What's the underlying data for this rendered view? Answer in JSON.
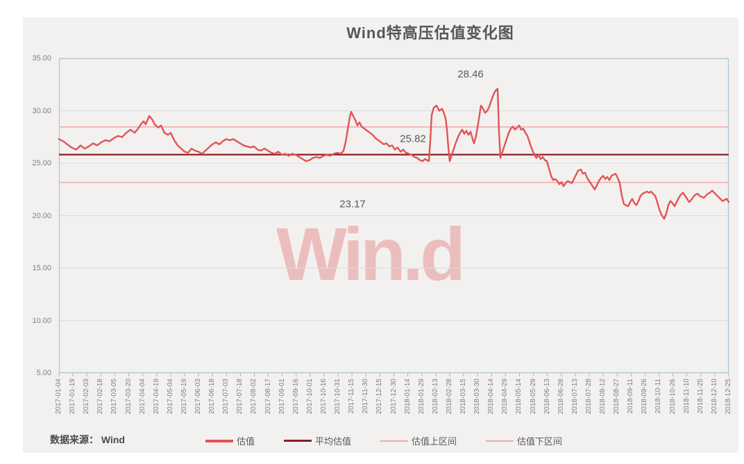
{
  "title": "Wind特高压估值变化图",
  "watermark": "Win.d",
  "source_note": {
    "text": "数据来源： Wind"
  },
  "colors": {
    "page_bg": "#ffffff",
    "panel_bg": "#f2f1f0",
    "grid": "#dcdcdc",
    "axis_border": "#a9c6d6",
    "tick": "#9db8c6",
    "series": "#e25353",
    "average_line": "#8a1f1f",
    "band_line": "#f2a8a8",
    "title_text": "#565656",
    "label_text": "#808080",
    "annotation_text": "#595959",
    "watermark_text": "rgba(223,90,90,0.34)"
  },
  "legend": [
    {
      "label": "估值",
      "color": "#e25353",
      "thickness": 4
    },
    {
      "label": "平均估值",
      "color": "#8a1f1f",
      "thickness": 3
    },
    {
      "label": "估值上区间",
      "color": "#f2a8a8",
      "thickness": 2
    },
    {
      "label": "估值下区间",
      "color": "#f2a8a8",
      "thickness": 2
    }
  ],
  "chart_data": {
    "type": "line",
    "title": "Wind特高压估值变化图",
    "xlabel": "",
    "ylabel": "",
    "ylim": [
      5,
      35
    ],
    "y_tick_step": 5,
    "y_tick_labels": [
      "5.00",
      "10.00",
      "15.00",
      "20.00",
      "25.00",
      "30.00",
      "35.00"
    ],
    "grid": "horizontal",
    "legend_position": "bottom",
    "categories": [
      "2017-01-04",
      "2017-01-19",
      "2017-02-03",
      "2017-02-18",
      "2017-03-05",
      "2017-03-20",
      "2017-04-04",
      "2017-04-19",
      "2017-05-04",
      "2017-05-19",
      "2017-06-03",
      "2017-06-18",
      "2017-07-03",
      "2017-07-18",
      "2017-08-02",
      "2017-08-17",
      "2017-09-01",
      "2017-09-16",
      "2017-10-01",
      "2017-10-16",
      "2017-10-31",
      "2017-11-15",
      "2017-11-30",
      "2017-12-15",
      "2017-12-30",
      "2018-01-14",
      "2018-01-29",
      "2018-02-13",
      "2018-02-28",
      "2018-03-15",
      "2018-03-30",
      "2018-04-14",
      "2018-04-29",
      "2018-05-14",
      "2018-05-29",
      "2018-06-13",
      "2018-06-28",
      "2018-07-13",
      "2018-07-28",
      "2018-08-12",
      "2018-08-27",
      "2018-09-11",
      "2018-09-26",
      "2018-10-11",
      "2018-10-26",
      "2018-11-10",
      "2018-11-25",
      "2018-12-10",
      "2018-12-25"
    ],
    "reference_lines": [
      {
        "name": "估值上区间",
        "value": 28.46,
        "color": "#f2a8a8",
        "width": 1.6
      },
      {
        "name": "平均估值",
        "value": 25.82,
        "color": "#8a1f1f",
        "width": 2.2
      },
      {
        "name": "估值下区间",
        "value": 23.17,
        "color": "#f2a8a8",
        "width": 1.6
      }
    ],
    "annotations": [
      {
        "text": "28.46",
        "x": 593,
        "y": 23
      },
      {
        "text": "25.82",
        "x": 510,
        "y": 116
      },
      {
        "text": "23.17",
        "x": 423,
        "y": 210
      }
    ],
    "series_name": "估值",
    "x_unit": "plot-px (0 = 2017-01-04, 965 = 2018-12-25)",
    "series_points": [
      [
        0,
        27.3
      ],
      [
        6,
        27.1
      ],
      [
        12,
        26.8
      ],
      [
        18,
        26.5
      ],
      [
        25,
        26.3
      ],
      [
        31,
        26.7
      ],
      [
        37,
        26.4
      ],
      [
        43,
        26.6
      ],
      [
        49,
        26.9
      ],
      [
        55,
        26.7
      ],
      [
        61,
        27.0
      ],
      [
        67,
        27.2
      ],
      [
        73,
        27.1
      ],
      [
        79,
        27.4
      ],
      [
        85,
        27.6
      ],
      [
        91,
        27.5
      ],
      [
        97,
        27.9
      ],
      [
        103,
        28.2
      ],
      [
        109,
        27.9
      ],
      [
        115,
        28.4
      ],
      [
        119,
        28.8
      ],
      [
        122,
        29.0
      ],
      [
        125,
        28.7
      ],
      [
        130,
        29.5
      ],
      [
        134,
        29.2
      ],
      [
        138,
        28.7
      ],
      [
        143,
        28.4
      ],
      [
        147,
        28.6
      ],
      [
        152,
        27.9
      ],
      [
        157,
        27.7
      ],
      [
        161,
        27.9
      ],
      [
        166,
        27.2
      ],
      [
        171,
        26.7
      ],
      [
        176,
        26.4
      ],
      [
        181,
        26.1
      ],
      [
        186,
        26.0
      ],
      [
        191,
        26.4
      ],
      [
        196,
        26.2
      ],
      [
        201,
        26.1
      ],
      [
        206,
        25.9
      ],
      [
        211,
        26.2
      ],
      [
        216,
        26.5
      ],
      [
        221,
        26.8
      ],
      [
        226,
        27.0
      ],
      [
        231,
        26.8
      ],
      [
        236,
        27.1
      ],
      [
        241,
        27.3
      ],
      [
        246,
        27.2
      ],
      [
        251,
        27.3
      ],
      [
        256,
        27.1
      ],
      [
        261,
        26.9
      ],
      [
        266,
        26.7
      ],
      [
        271,
        26.6
      ],
      [
        276,
        26.5
      ],
      [
        281,
        26.6
      ],
      [
        286,
        26.3
      ],
      [
        291,
        26.2
      ],
      [
        296,
        26.4
      ],
      [
        301,
        26.2
      ],
      [
        306,
        26.0
      ],
      [
        311,
        25.9
      ],
      [
        316,
        26.1
      ],
      [
        321,
        25.8
      ],
      [
        326,
        25.9
      ],
      [
        331,
        25.7
      ],
      [
        336,
        25.9
      ],
      [
        341,
        25.8
      ],
      [
        346,
        25.6
      ],
      [
        351,
        25.4
      ],
      [
        356,
        25.2
      ],
      [
        361,
        25.3
      ],
      [
        366,
        25.5
      ],
      [
        371,
        25.6
      ],
      [
        376,
        25.5
      ],
      [
        381,
        25.7
      ],
      [
        386,
        25.8
      ],
      [
        391,
        25.7
      ],
      [
        396,
        25.9
      ],
      [
        401,
        26.0
      ],
      [
        406,
        25.9
      ],
      [
        410,
        26.2
      ],
      [
        413,
        27.0
      ],
      [
        416,
        28.2
      ],
      [
        419,
        29.4
      ],
      [
        421,
        29.9
      ],
      [
        424,
        29.5
      ],
      [
        427,
        29.1
      ],
      [
        430,
        28.6
      ],
      [
        433,
        28.9
      ],
      [
        436,
        28.5
      ],
      [
        440,
        28.3
      ],
      [
        444,
        28.1
      ],
      [
        448,
        27.9
      ],
      [
        452,
        27.7
      ],
      [
        456,
        27.4
      ],
      [
        460,
        27.2
      ],
      [
        464,
        27.0
      ],
      [
        468,
        26.8
      ],
      [
        472,
        26.9
      ],
      [
        476,
        26.6
      ],
      [
        480,
        26.7
      ],
      [
        484,
        26.3
      ],
      [
        488,
        26.5
      ],
      [
        492,
        26.1
      ],
      [
        496,
        26.3
      ],
      [
        500,
        26.0
      ],
      [
        504,
        25.9
      ],
      [
        508,
        25.8
      ],
      [
        512,
        25.6
      ],
      [
        516,
        25.5
      ],
      [
        520,
        25.3
      ],
      [
        524,
        25.2
      ],
      [
        527,
        25.4
      ],
      [
        530,
        25.3
      ],
      [
        533,
        25.2
      ],
      [
        535,
        27.2
      ],
      [
        537,
        29.6
      ],
      [
        540,
        30.3
      ],
      [
        544,
        30.5
      ],
      [
        548,
        30.0
      ],
      [
        552,
        30.2
      ],
      [
        555,
        29.7
      ],
      [
        557,
        29.3
      ],
      [
        559,
        28.2
      ],
      [
        561,
        26.5
      ],
      [
        563,
        25.2
      ],
      [
        566,
        25.8
      ],
      [
        569,
        26.4
      ],
      [
        572,
        27.0
      ],
      [
        575,
        27.5
      ],
      [
        578,
        27.9
      ],
      [
        581,
        28.2
      ],
      [
        584,
        27.8
      ],
      [
        587,
        28.1
      ],
      [
        590,
        27.7
      ],
      [
        593,
        28.0
      ],
      [
        596,
        27.3
      ],
      [
        598,
        26.9
      ],
      [
        601,
        27.6
      ],
      [
        604,
        28.8
      ],
      [
        608,
        30.5
      ],
      [
        611,
        30.2
      ],
      [
        614,
        29.8
      ],
      [
        617,
        30.0
      ],
      [
        620,
        30.4
      ],
      [
        623,
        31.0
      ],
      [
        627,
        31.7
      ],
      [
        630,
        32.0
      ],
      [
        632,
        32.1
      ],
      [
        634,
        28.0
      ],
      [
        636,
        25.5
      ],
      [
        639,
        26.1
      ],
      [
        642,
        26.7
      ],
      [
        645,
        27.3
      ],
      [
        648,
        27.9
      ],
      [
        651,
        28.3
      ],
      [
        654,
        28.5
      ],
      [
        657,
        28.2
      ],
      [
        660,
        28.4
      ],
      [
        663,
        28.6
      ],
      [
        666,
        28.2
      ],
      [
        669,
        28.3
      ],
      [
        672,
        27.9
      ],
      [
        675,
        27.6
      ],
      [
        677,
        27.2
      ],
      [
        680,
        26.6
      ],
      [
        683,
        26.1
      ],
      [
        686,
        25.7
      ],
      [
        688,
        25.5
      ],
      [
        691,
        25.8
      ],
      [
        694,
        25.4
      ],
      [
        697,
        25.6
      ],
      [
        700,
        25.3
      ],
      [
        703,
        25.2
      ],
      [
        706,
        24.5
      ],
      [
        709,
        23.8
      ],
      [
        712,
        23.4
      ],
      [
        715,
        23.5
      ],
      [
        718,
        23.3
      ],
      [
        721,
        23.0
      ],
      [
        724,
        23.2
      ],
      [
        727,
        22.8
      ],
      [
        730,
        23.1
      ],
      [
        733,
        23.3
      ],
      [
        736,
        23.2
      ],
      [
        739,
        23.1
      ],
      [
        742,
        23.5
      ],
      [
        745,
        23.9
      ],
      [
        748,
        24.3
      ],
      [
        752,
        24.4
      ],
      [
        755,
        24.0
      ],
      [
        758,
        24.1
      ],
      [
        761,
        23.6
      ],
      [
        764,
        23.3
      ],
      [
        767,
        23.0
      ],
      [
        770,
        22.7
      ],
      [
        772,
        22.5
      ],
      [
        775,
        22.9
      ],
      [
        778,
        23.3
      ],
      [
        781,
        23.6
      ],
      [
        784,
        23.8
      ],
      [
        787,
        23.5
      ],
      [
        790,
        23.7
      ],
      [
        793,
        23.4
      ],
      [
        796,
        23.8
      ],
      [
        799,
        23.9
      ],
      [
        802,
        24.0
      ],
      [
        805,
        23.6
      ],
      [
        808,
        23.1
      ],
      [
        811,
        21.9
      ],
      [
        814,
        21.1
      ],
      [
        817,
        21.0
      ],
      [
        820,
        20.9
      ],
      [
        823,
        21.3
      ],
      [
        826,
        21.6
      ],
      [
        829,
        21.2
      ],
      [
        832,
        21.0
      ],
      [
        835,
        21.4
      ],
      [
        838,
        21.9
      ],
      [
        841,
        22.1
      ],
      [
        844,
        22.2
      ],
      [
        847,
        22.3
      ],
      [
        850,
        22.2
      ],
      [
        853,
        22.3
      ],
      [
        856,
        22.1
      ],
      [
        859,
        21.9
      ],
      [
        862,
        21.3
      ],
      [
        865,
        20.6
      ],
      [
        868,
        20.1
      ],
      [
        872,
        19.7
      ],
      [
        875,
        20.2
      ],
      [
        878,
        21.0
      ],
      [
        881,
        21.4
      ],
      [
        884,
        21.2
      ],
      [
        887,
        20.9
      ],
      [
        890,
        21.3
      ],
      [
        893,
        21.7
      ],
      [
        896,
        22.0
      ],
      [
        899,
        22.2
      ],
      [
        902,
        21.9
      ],
      [
        905,
        21.6
      ],
      [
        908,
        21.3
      ],
      [
        911,
        21.5
      ],
      [
        914,
        21.8
      ],
      [
        917,
        22.0
      ],
      [
        920,
        22.1
      ],
      [
        923,
        21.9
      ],
      [
        926,
        21.8
      ],
      [
        929,
        21.7
      ],
      [
        932,
        21.9
      ],
      [
        935,
        22.1
      ],
      [
        938,
        22.2
      ],
      [
        941,
        22.4
      ],
      [
        944,
        22.2
      ],
      [
        947,
        22.0
      ],
      [
        950,
        21.8
      ],
      [
        953,
        21.6
      ],
      [
        956,
        21.4
      ],
      [
        959,
        21.5
      ],
      [
        962,
        21.6
      ],
      [
        965,
        21.3
      ]
    ]
  }
}
